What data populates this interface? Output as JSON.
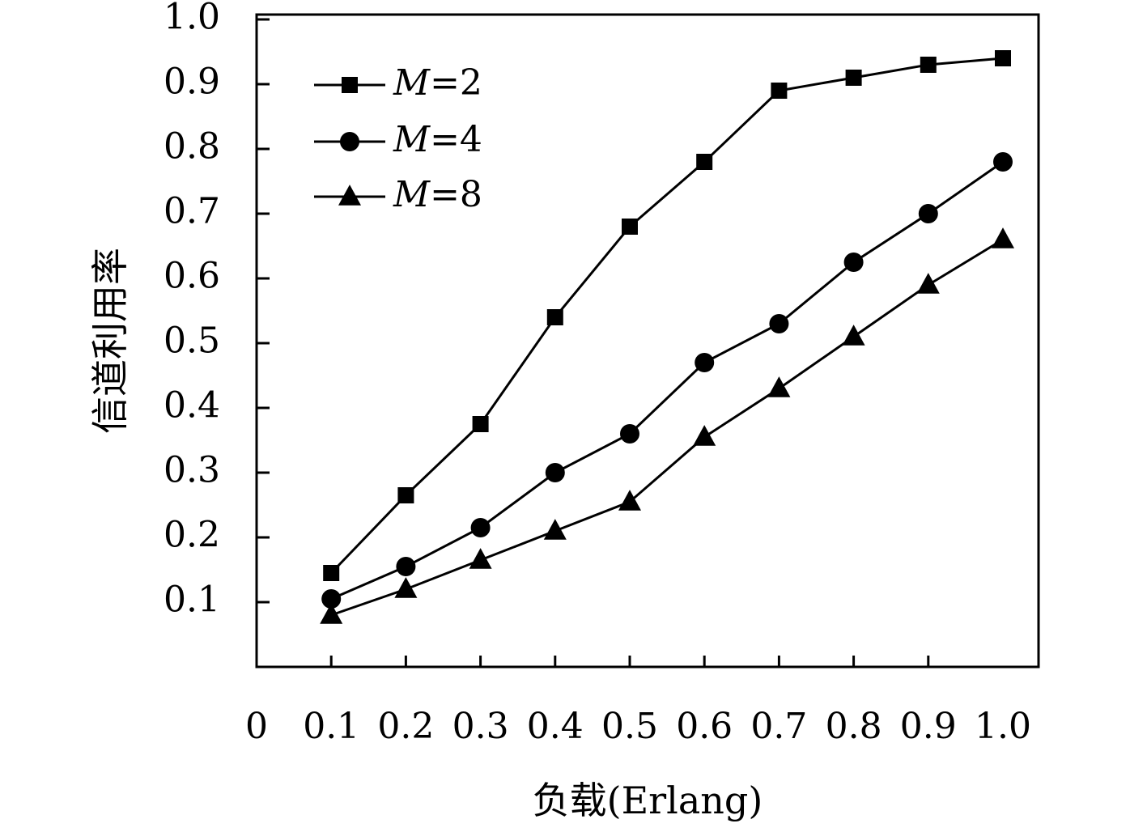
{
  "chart_data": {
    "type": "line",
    "title": "",
    "xlabel": "负载(Erlang)",
    "ylabel": "信道利用率",
    "xlim": [
      0,
      1.0
    ],
    "ylim": [
      0,
      1.0
    ],
    "x_ticks": [
      "0",
      "0.1",
      "0.2",
      "0.3",
      "0.4",
      "0.5",
      "0.6",
      "0.7",
      "0.8",
      "0.9",
      "1.0"
    ],
    "y_ticks": [
      "0.1",
      "0.2",
      "0.3",
      "0.4",
      "0.5",
      "0.6",
      "0.7",
      "0.8",
      "0.9",
      "1.0"
    ],
    "grid": false,
    "legend_position": "top-left",
    "x": [
      0.1,
      0.2,
      0.3,
      0.4,
      0.5,
      0.6,
      0.7,
      0.8,
      0.9,
      1.0
    ],
    "series": [
      {
        "name": "M=2",
        "var": "M",
        "eq": "=2",
        "marker": "square",
        "values": [
          0.145,
          0.265,
          0.375,
          0.54,
          0.68,
          0.78,
          0.89,
          0.91,
          0.93,
          0.94
        ]
      },
      {
        "name": "M=4",
        "var": "M",
        "eq": "=4",
        "marker": "circle",
        "values": [
          0.105,
          0.155,
          0.215,
          0.3,
          0.36,
          0.47,
          0.53,
          0.625,
          0.7,
          0.78
        ]
      },
      {
        "name": "M=8",
        "var": "M",
        "eq": "=8",
        "marker": "triangle",
        "values": [
          0.08,
          0.12,
          0.165,
          0.21,
          0.255,
          0.355,
          0.43,
          0.51,
          0.59,
          0.66
        ]
      }
    ]
  }
}
